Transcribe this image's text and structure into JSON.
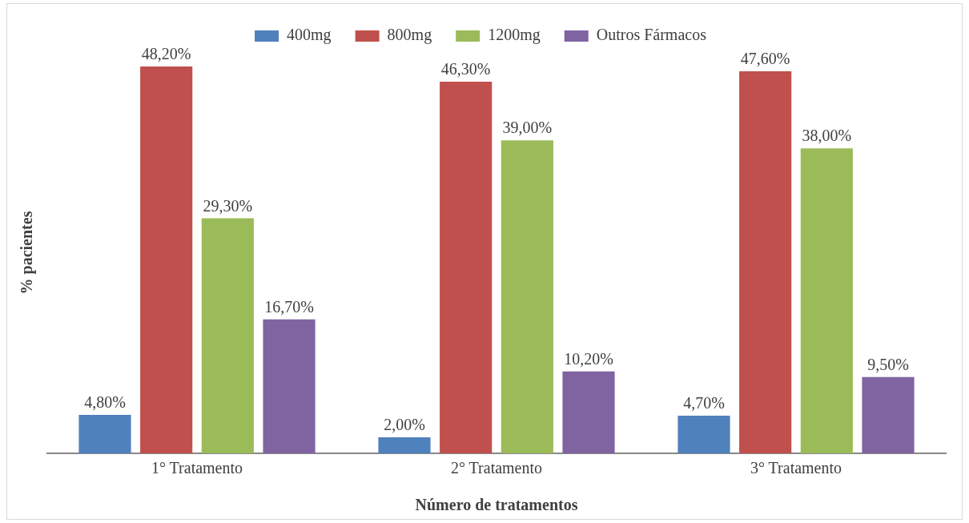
{
  "chart_data": {
    "type": "bar",
    "xlabel": "Número de tratamentos",
    "ylabel": "% pacientes",
    "categories": [
      "1° Tratamento",
      "2° Tratamento",
      "3° Tratamento"
    ],
    "series": [
      {
        "name": "400mg",
        "color": "#4f81bd",
        "values": [
          4.8,
          2.0,
          4.7
        ],
        "value_labels": [
          "4,80%",
          "2,00%",
          "4,70%"
        ]
      },
      {
        "name": "800mg",
        "color": "#c0504d",
        "values": [
          48.2,
          46.3,
          47.6
        ],
        "value_labels": [
          "48,20%",
          "46,30%",
          "47,60%"
        ]
      },
      {
        "name": "1200mg",
        "color": "#9bbb59",
        "values": [
          29.3,
          39.0,
          38.0
        ],
        "value_labels": [
          "29,30%",
          "39,00%",
          "38,00%"
        ]
      },
      {
        "name": "Outros Fármacos",
        "color": "#8064a2",
        "values": [
          16.7,
          10.2,
          9.5
        ],
        "value_labels": [
          "16,70%",
          "10,20%",
          "9,50%"
        ]
      }
    ],
    "legend": "top",
    "grid": false
  }
}
